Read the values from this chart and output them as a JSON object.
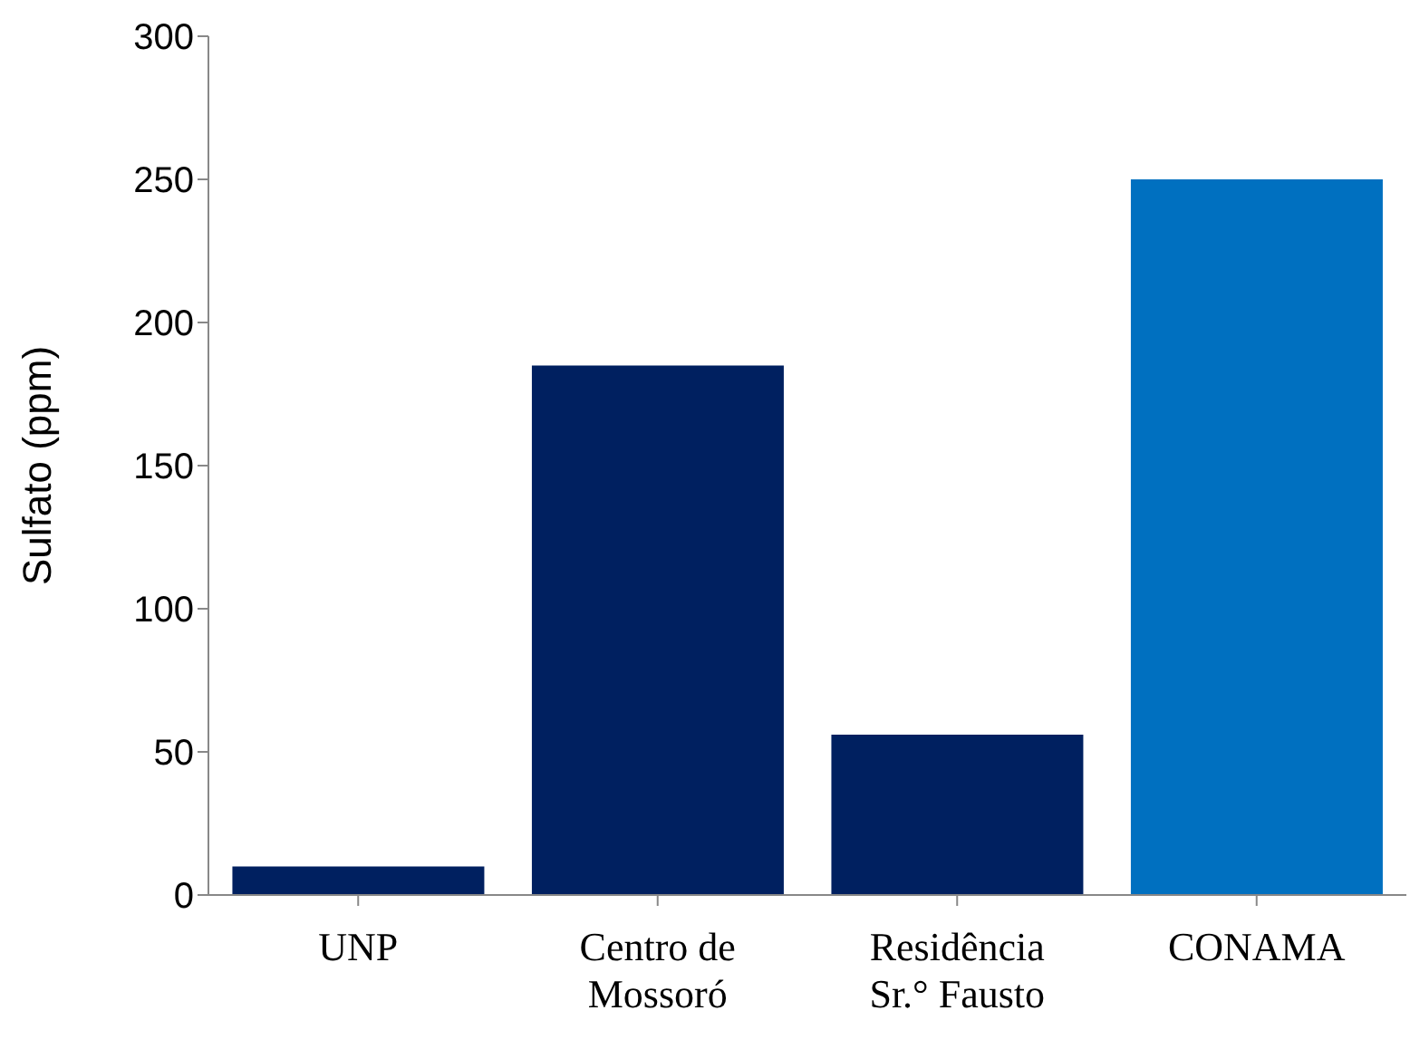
{
  "chart_data": {
    "type": "bar",
    "ylabel": "Sulfato (ppm)",
    "categories": [
      "UNP",
      "Centro de Mossoró",
      "Residência Sr.° Fausto",
      "CONAMA"
    ],
    "values": [
      10,
      185,
      56,
      250
    ],
    "colors": [
      "#002060",
      "#002060",
      "#002060",
      "#0070c0"
    ],
    "ylim": [
      0,
      300
    ],
    "yticks": [
      0,
      50,
      100,
      150,
      200,
      250,
      300
    ],
    "grid": false,
    "legend": false
  }
}
